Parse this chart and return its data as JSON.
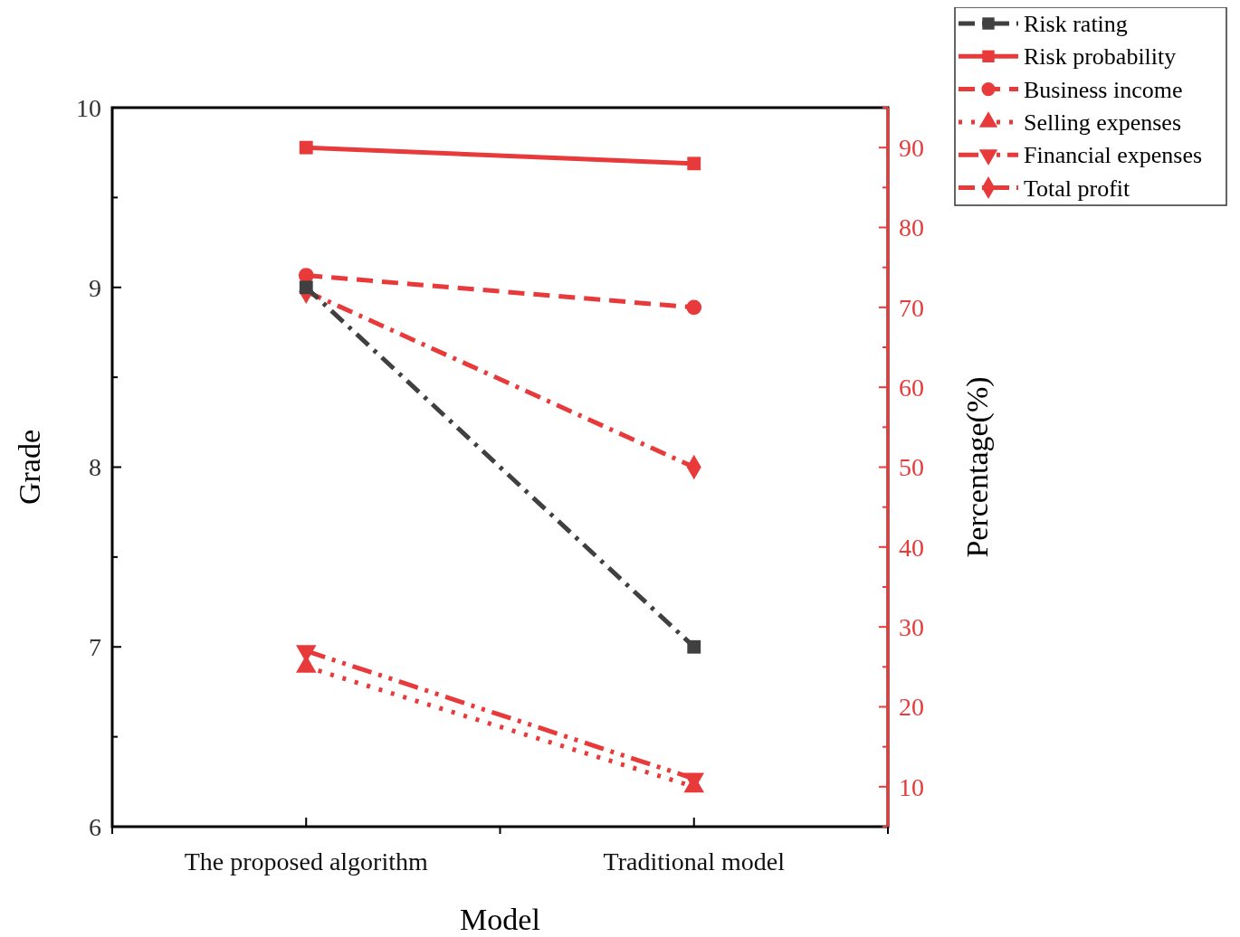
{
  "chart_data": {
    "type": "line",
    "xlabel": "Model",
    "ylabel": "Grade",
    "y2label": "Percentage(%)",
    "categories": [
      "The proposed algorithm",
      "Traditional model"
    ],
    "ylim": [
      6,
      10
    ],
    "yticks": [
      6,
      7,
      8,
      9,
      10
    ],
    "y2lim": [
      5,
      95
    ],
    "y2ticks": [
      10,
      20,
      30,
      40,
      50,
      60,
      70,
      80,
      90
    ],
    "grid": false,
    "legend": "top right",
    "series": [
      {
        "name": "Risk rating",
        "color": "#404040",
        "values": [
          9.0,
          7.0
        ],
        "marker": "square",
        "line_style": "dashdot"
      },
      {
        "name": "Risk probability",
        "color": "#e83a3a",
        "values": [
          90,
          88
        ],
        "axis": "y2",
        "marker": "square",
        "line_style": "solid"
      },
      {
        "name": "Business income",
        "color": "#e83a3a",
        "values": [
          74,
          70
        ],
        "axis": "y2",
        "marker": "circle",
        "line_style": "dashed"
      },
      {
        "name": "Selling expenses",
        "color": "#e83a3a",
        "values": [
          25,
          10
        ],
        "axis": "y2",
        "marker": "triangle",
        "line_style": "dotted"
      },
      {
        "name": "Financial expenses",
        "color": "#e83a3a",
        "values": [
          27,
          11
        ],
        "axis": "y2",
        "marker": "triangle-down",
        "line_style": "dashdotdot"
      },
      {
        "name": "Total profit",
        "color": "#e83a3a",
        "values": [
          72,
          50
        ],
        "axis": "y2",
        "marker": "diamond",
        "line_style": "dashdot"
      }
    ]
  }
}
